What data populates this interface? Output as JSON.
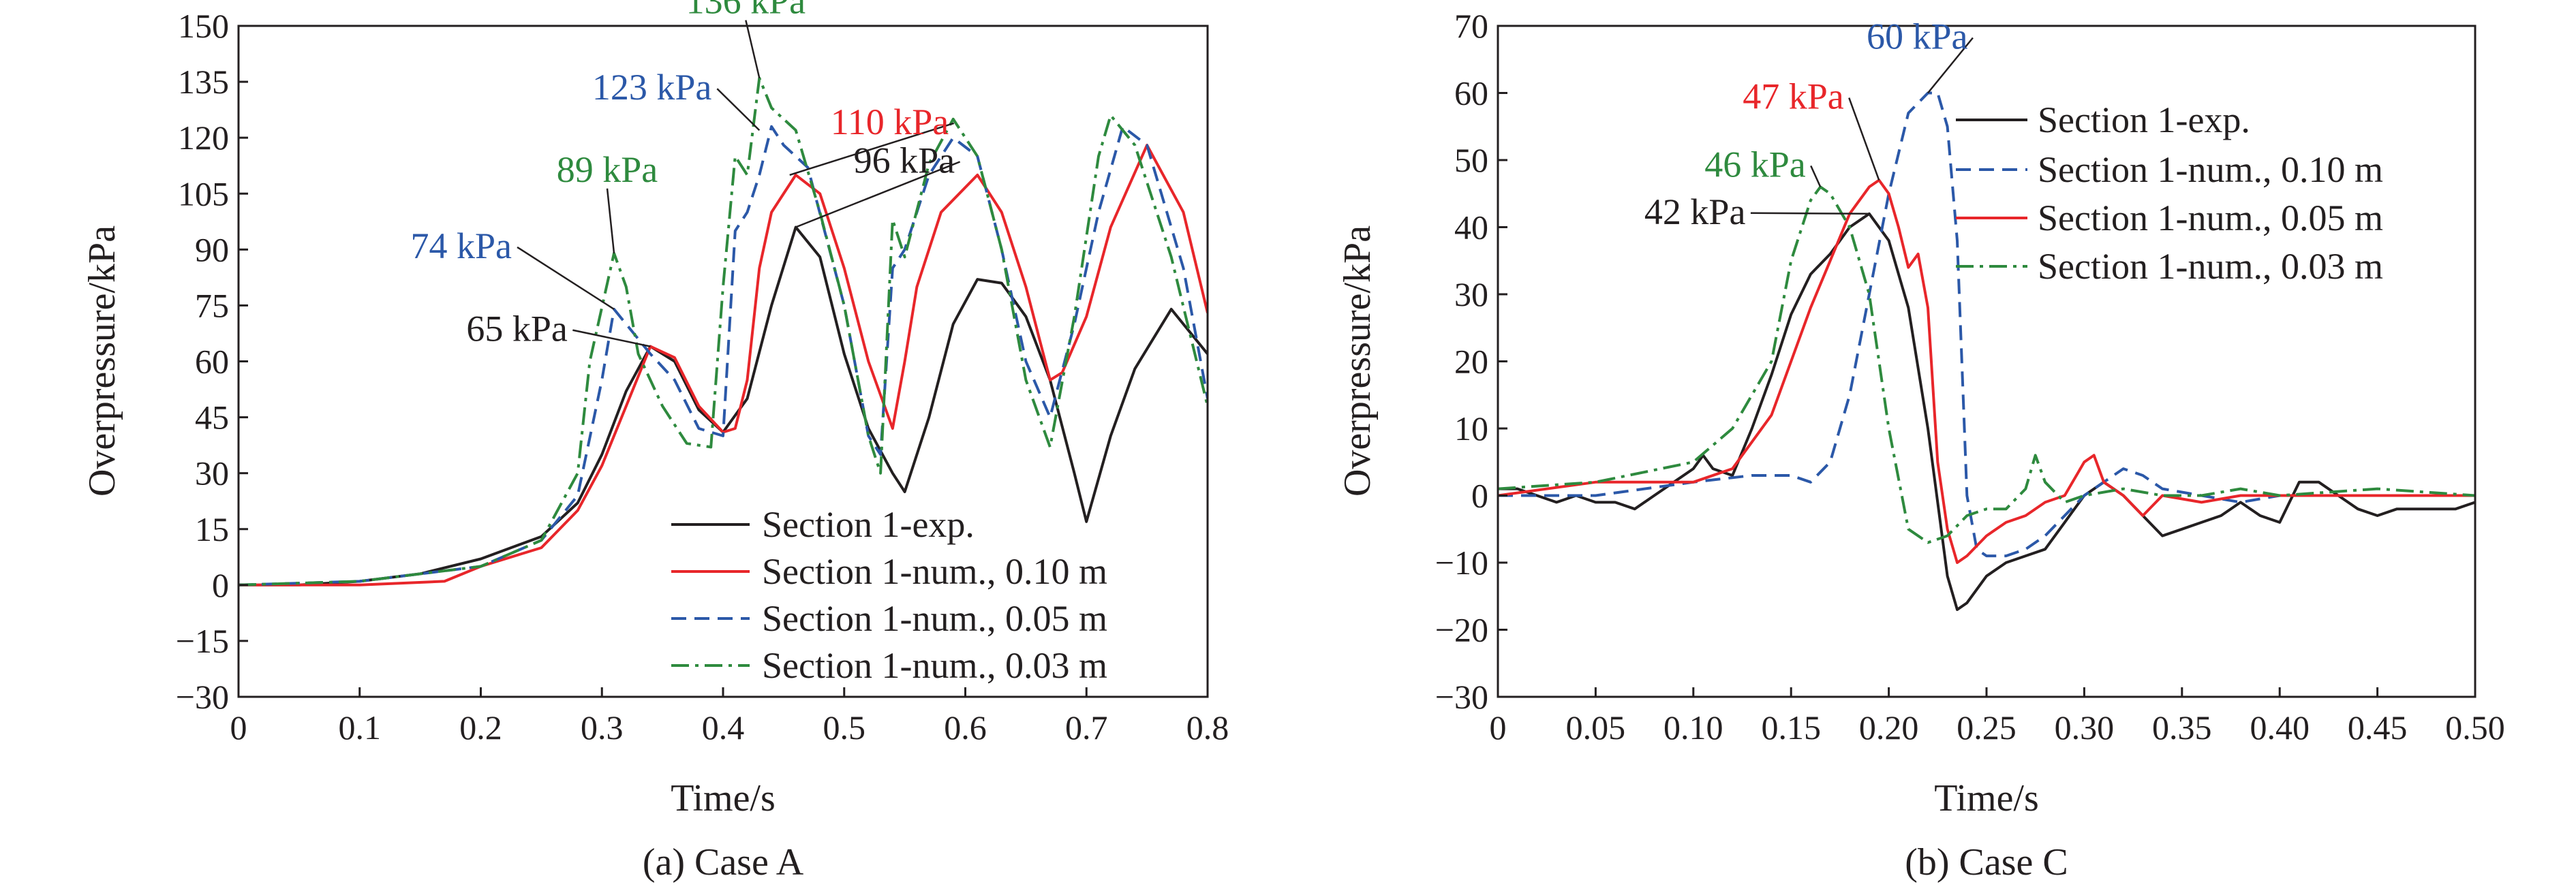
{
  "chart_data": [
    {
      "type": "line",
      "id": "case-a",
      "caption": "(a) Case A",
      "xlabel": "Time/s",
      "ylabel": "Overpressure/kPa",
      "xlim": [
        0,
        0.8
      ],
      "ylim": [
        -30,
        150
      ],
      "xticks": [
        0,
        0.1,
        0.2,
        0.3,
        0.4,
        0.5,
        0.6,
        0.7,
        0.8
      ],
      "xtick_labels": [
        "0",
        "0.1",
        "0.2",
        "0.3",
        "0.4",
        "0.5",
        "0.6",
        "0.7",
        "0.8"
      ],
      "yticks": [
        -30,
        -15,
        0,
        15,
        30,
        45,
        60,
        75,
        90,
        105,
        120,
        135,
        150
      ],
      "ytick_labels": [
        "−30",
        "−15",
        "0",
        "15",
        "30",
        "45",
        "60",
        "75",
        "90",
        "105",
        "120",
        "135",
        "150"
      ],
      "grid": false,
      "legend_position": "bottom-right",
      "series": [
        {
          "name": "Section 1-exp.",
          "color": "#231f20",
          "dash": "solid",
          "x": [
            0,
            0.05,
            0.1,
            0.15,
            0.2,
            0.25,
            0.28,
            0.3,
            0.32,
            0.34,
            0.36,
            0.38,
            0.4,
            0.42,
            0.44,
            0.46,
            0.48,
            0.5,
            0.52,
            0.54,
            0.55,
            0.57,
            0.59,
            0.61,
            0.63,
            0.65,
            0.67,
            0.69,
            0.7,
            0.72,
            0.74,
            0.77,
            0.8
          ],
          "y": [
            0,
            0,
            1,
            3,
            7,
            13,
            22,
            35,
            52,
            64,
            60,
            47,
            41,
            50,
            75,
            96,
            88,
            62,
            42,
            30,
            25,
            45,
            70,
            82,
            81,
            72,
            55,
            30,
            17,
            40,
            58,
            74,
            62
          ]
        },
        {
          "name": "Section 1-num., 0.10 m",
          "color": "#e8262a",
          "dash": "solid",
          "x": [
            0,
            0.1,
            0.17,
            0.2,
            0.25,
            0.28,
            0.3,
            0.32,
            0.34,
            0.36,
            0.38,
            0.4,
            0.41,
            0.42,
            0.43,
            0.44,
            0.46,
            0.48,
            0.5,
            0.52,
            0.54,
            0.55,
            0.56,
            0.58,
            0.61,
            0.63,
            0.65,
            0.67,
            0.68,
            0.7,
            0.72,
            0.75,
            0.78,
            0.8
          ],
          "y": [
            0,
            0,
            1,
            5,
            10,
            20,
            32,
            48,
            64,
            61,
            48,
            41,
            42,
            55,
            85,
            100,
            110,
            105,
            85,
            60,
            42,
            60,
            80,
            100,
            110,
            100,
            80,
            55,
            57,
            72,
            96,
            118,
            100,
            73
          ]
        },
        {
          "name": "Section 1-num., 0.05 m",
          "color": "#2b58a8",
          "dash": "dashed",
          "x": [
            0,
            0.1,
            0.2,
            0.25,
            0.28,
            0.3,
            0.31,
            0.32,
            0.34,
            0.36,
            0.38,
            0.4,
            0.41,
            0.42,
            0.43,
            0.44,
            0.45,
            0.47,
            0.5,
            0.52,
            0.53,
            0.54,
            0.55,
            0.57,
            0.59,
            0.61,
            0.63,
            0.65,
            0.67,
            0.69,
            0.71,
            0.73,
            0.75,
            0.78,
            0.8
          ],
          "y": [
            0,
            1,
            5,
            12,
            24,
            55,
            74,
            70,
            62,
            55,
            42,
            40,
            95,
            100,
            110,
            123,
            118,
            112,
            75,
            40,
            35,
            85,
            90,
            110,
            120,
            115,
            90,
            60,
            45,
            70,
            100,
            123,
            118,
            85,
            50
          ]
        },
        {
          "name": "Section 1-num., 0.03 m",
          "color": "#2e8a3e",
          "dash": "dashdot",
          "x": [
            0,
            0.1,
            0.2,
            0.25,
            0.28,
            0.29,
            0.31,
            0.32,
            0.33,
            0.35,
            0.37,
            0.39,
            0.4,
            0.41,
            0.42,
            0.43,
            0.44,
            0.46,
            0.48,
            0.5,
            0.52,
            0.53,
            0.54,
            0.55,
            0.57,
            0.59,
            0.61,
            0.63,
            0.65,
            0.67,
            0.69,
            0.71,
            0.72,
            0.74,
            0.77,
            0.8
          ],
          "y": [
            0,
            1,
            5,
            12,
            30,
            60,
            89,
            80,
            62,
            48,
            38,
            37,
            80,
            115,
            110,
            136,
            128,
            122,
            100,
            75,
            40,
            30,
            98,
            88,
            113,
            125,
            115,
            90,
            55,
            37,
            72,
            115,
            126,
            118,
            88,
            48
          ]
        }
      ],
      "annotations": [
        {
          "text": "65 kPa",
          "color": "#231f20",
          "target": [
            0.34,
            64
          ]
        },
        {
          "text": "74 kPa",
          "color": "#2b58a8",
          "target": [
            0.31,
            74
          ]
        },
        {
          "text": "89 kPa",
          "color": "#2e8a3e",
          "target": [
            0.31,
            89
          ]
        },
        {
          "text": "123 kPa",
          "color": "#2b58a8",
          "target": [
            0.43,
            122
          ]
        },
        {
          "text": "136 kPa",
          "color": "#2e8a3e",
          "target": [
            0.43,
            136
          ]
        },
        {
          "text": "110 kPa",
          "color": "#e8262a",
          "target": [
            0.455,
            110
          ]
        },
        {
          "text": "96 kPa",
          "color": "#231f20",
          "target": [
            0.46,
            96
          ]
        }
      ]
    },
    {
      "type": "line",
      "id": "case-c",
      "caption": "(b) Case C",
      "xlabel": "Time/s",
      "ylabel": "Overpressure/kPa",
      "xlim": [
        0,
        0.5
      ],
      "ylim": [
        -30,
        70
      ],
      "xticks": [
        0,
        0.05,
        0.1,
        0.15,
        0.2,
        0.25,
        0.3,
        0.35,
        0.4,
        0.45,
        0.5
      ],
      "xtick_labels": [
        "0",
        "0.05",
        "0.10",
        "0.15",
        "0.20",
        "0.25",
        "0.30",
        "0.35",
        "0.40",
        "0.45",
        "0.50"
      ],
      "yticks": [
        -30,
        -20,
        -10,
        0,
        10,
        20,
        30,
        40,
        50,
        60,
        70
      ],
      "ytick_labels": [
        "−30",
        "−20",
        "−10",
        "0",
        "10",
        "20",
        "30",
        "40",
        "50",
        "60",
        "70"
      ],
      "grid": false,
      "legend_position": "top-right",
      "series": [
        {
          "name": "Section 1-exp.",
          "color": "#231f20",
          "dash": "solid",
          "x": [
            0,
            0.01,
            0.02,
            0.03,
            0.04,
            0.05,
            0.06,
            0.07,
            0.08,
            0.09,
            0.1,
            0.105,
            0.11,
            0.12,
            0.13,
            0.14,
            0.15,
            0.16,
            0.17,
            0.18,
            0.19,
            0.2,
            0.21,
            0.22,
            0.23,
            0.235,
            0.24,
            0.25,
            0.26,
            0.27,
            0.28,
            0.29,
            0.3,
            0.31,
            0.32,
            0.33,
            0.34,
            0.35,
            0.36,
            0.37,
            0.38,
            0.39,
            0.4,
            0.41,
            0.42,
            0.43,
            0.44,
            0.45,
            0.46,
            0.47,
            0.48,
            0.49,
            0.5
          ],
          "y": [
            1,
            1,
            0,
            -1,
            0,
            -1,
            -1,
            -2,
            0,
            2,
            4,
            6,
            4,
            3,
            10,
            18,
            27,
            33,
            36,
            40,
            42,
            38,
            28,
            10,
            -12,
            -17,
            -16,
            -12,
            -10,
            -9,
            -8,
            -4,
            0,
            2,
            0,
            -3,
            -6,
            -5,
            -4,
            -3,
            -1,
            -3,
            -4,
            2,
            2,
            0,
            -2,
            -3,
            -2,
            -2,
            -2,
            -2,
            -1
          ]
        },
        {
          "name": "Section 1-num., 0.10 m",
          "color": "#2b58a8",
          "dash": "dashed",
          "x": [
            0,
            0.05,
            0.1,
            0.13,
            0.15,
            0.16,
            0.17,
            0.18,
            0.19,
            0.2,
            0.21,
            0.22,
            0.225,
            0.23,
            0.235,
            0.24,
            0.245,
            0.25,
            0.26,
            0.27,
            0.28,
            0.29,
            0.3,
            0.31,
            0.32,
            0.33,
            0.34,
            0.36,
            0.38,
            0.4,
            0.45,
            0.5
          ],
          "y": [
            0,
            0,
            2,
            3,
            3,
            2,
            5,
            15,
            30,
            45,
            57,
            60,
            60,
            55,
            38,
            0,
            -8,
            -9,
            -9,
            -8,
            -6,
            -3,
            0,
            2,
            4,
            3,
            1,
            0,
            -1,
            0,
            0,
            0
          ]
        },
        {
          "name": "Section 1-num., 0.05 m",
          "color": "#e8262a",
          "dash": "solid",
          "x": [
            0,
            0.05,
            0.1,
            0.12,
            0.14,
            0.16,
            0.17,
            0.18,
            0.19,
            0.195,
            0.2,
            0.205,
            0.21,
            0.215,
            0.22,
            0.225,
            0.23,
            0.235,
            0.24,
            0.25,
            0.26,
            0.27,
            0.28,
            0.29,
            0.3,
            0.305,
            0.31,
            0.32,
            0.33,
            0.34,
            0.36,
            0.38,
            0.4,
            0.45,
            0.5
          ],
          "y": [
            0,
            2,
            2,
            4,
            12,
            28,
            35,
            42,
            46,
            47,
            45,
            40,
            34,
            36,
            28,
            5,
            -5,
            -10,
            -9,
            -6,
            -4,
            -3,
            -1,
            0,
            5,
            6,
            2,
            0,
            -3,
            0,
            -1,
            0,
            0,
            0,
            0
          ]
        },
        {
          "name": "Section 1-num., 0.03 m",
          "color": "#2e8a3e",
          "dash": "dashdot",
          "x": [
            0,
            0.05,
            0.1,
            0.12,
            0.14,
            0.15,
            0.16,
            0.165,
            0.17,
            0.18,
            0.19,
            0.2,
            0.21,
            0.22,
            0.23,
            0.24,
            0.25,
            0.26,
            0.27,
            0.275,
            0.28,
            0.29,
            0.3,
            0.32,
            0.34,
            0.36,
            0.38,
            0.4,
            0.45,
            0.5
          ],
          "y": [
            1,
            2,
            5,
            10,
            20,
            35,
            44,
            46,
            45,
            40,
            30,
            10,
            -5,
            -7,
            -6,
            -3,
            -2,
            -2,
            1,
            6,
            2,
            -1,
            0,
            1,
            0,
            0,
            1,
            0,
            1,
            0
          ]
        }
      ],
      "annotations": [
        {
          "text": "42 kPa",
          "color": "#231f20",
          "target": [
            0.19,
            42
          ]
        },
        {
          "text": "46 kPa",
          "color": "#2e8a3e",
          "target": [
            0.165,
            46
          ]
        },
        {
          "text": "47 kPa",
          "color": "#e8262a",
          "target": [
            0.195,
            47
          ]
        },
        {
          "text": "60 kPa",
          "color": "#2b58a8",
          "target": [
            0.22,
            60
          ]
        }
      ]
    }
  ]
}
